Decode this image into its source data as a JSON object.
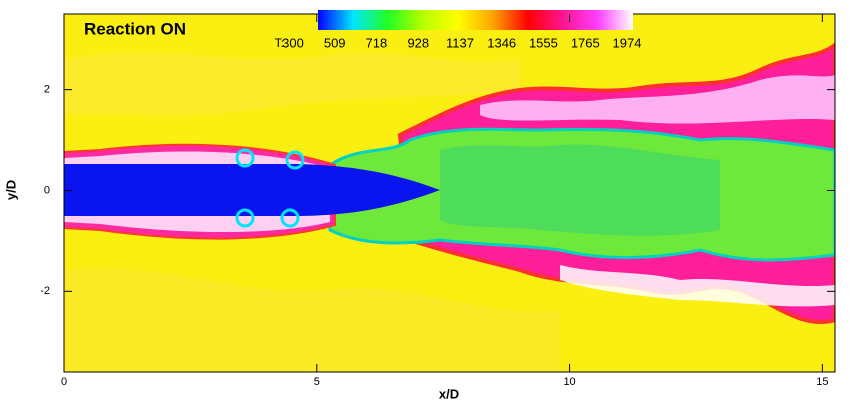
{
  "chart_data": {
    "type": "contour",
    "title": "Reaction ON",
    "xlabel": "x/D",
    "ylabel": "y/D",
    "xlim": [
      0,
      15.25
    ],
    "ylim": [
      -3.6,
      3.5
    ],
    "xticks": [
      0,
      5,
      10,
      15
    ],
    "yticks": [
      -2,
      0,
      2
    ],
    "colorbar_label": "T:",
    "clim": [
      300,
      1974
    ],
    "colorbar_ticks": [
      300,
      509,
      718,
      928,
      1137,
      1346,
      1555,
      1765,
      1974
    ],
    "colormap": [
      "#0000ff",
      "#00e5ff",
      "#22ff22",
      "#b8ff00",
      "#ffff00",
      "#ffa500",
      "#ff0000",
      "#ff1493",
      "#ff40ff",
      "#ffffff"
    ]
  }
}
